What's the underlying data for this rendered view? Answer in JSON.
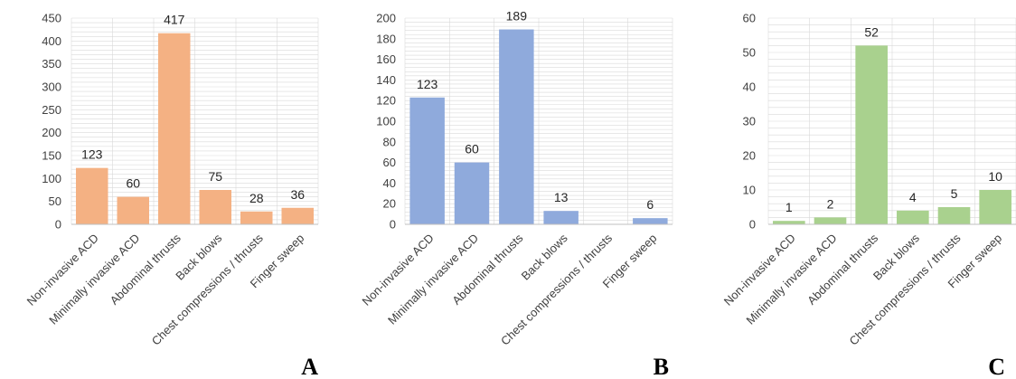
{
  "colors": {
    "grid": "#d9d9d9",
    "axis": "#bfbfbf",
    "text": "#404040",
    "label": "#262626"
  },
  "chart_data": [
    {
      "type": "bar",
      "panel": "A",
      "color": "#f4b183",
      "categories": [
        "Non-invasive ACD",
        "Minimally invasive ACD",
        "Abdominal thrusts",
        "Back blows",
        "Chest compressions / thrusts",
        "Finger sweep"
      ],
      "values": [
        123,
        60,
        417,
        75,
        28,
        36
      ],
      "data_labels": [
        "123",
        "60",
        "417",
        "75",
        "28",
        "36"
      ],
      "ylim": [
        0,
        450
      ],
      "yticks": [
        0,
        50,
        100,
        150,
        200,
        250,
        300,
        350,
        400,
        450
      ],
      "grid": true,
      "title": "",
      "xlabel": "",
      "ylabel": ""
    },
    {
      "type": "bar",
      "panel": "B",
      "color": "#8faadc",
      "categories": [
        "Non-invasive ACD",
        "Minimally invasive ACD",
        "Abdominal thrusts",
        "Back blows",
        "Chest compressions / thrusts",
        "Finger sweep"
      ],
      "values": [
        123,
        60,
        189,
        13,
        0,
        6
      ],
      "data_labels": [
        "123",
        "60",
        "189",
        "13",
        "",
        "6"
      ],
      "ylim": [
        0,
        200
      ],
      "yticks": [
        0,
        20,
        40,
        60,
        80,
        100,
        120,
        140,
        160,
        180,
        200
      ],
      "grid": true,
      "title": "",
      "xlabel": "",
      "ylabel": ""
    },
    {
      "type": "bar",
      "panel": "C",
      "color": "#a9d18e",
      "categories": [
        "Non-invasive ACD",
        "Minimally invasive ACD",
        "Abdominal thrusts",
        "Back blows",
        "Chest compressions / thrusts",
        "Finger sweep"
      ],
      "values": [
        1,
        2,
        52,
        4,
        5,
        10
      ],
      "data_labels": [
        "1",
        "2",
        "52",
        "4",
        "5",
        "10"
      ],
      "ylim": [
        0,
        60
      ],
      "yticks": [
        0,
        10,
        20,
        30,
        40,
        50,
        60
      ],
      "grid": true,
      "title": "",
      "xlabel": "",
      "ylabel": ""
    }
  ]
}
